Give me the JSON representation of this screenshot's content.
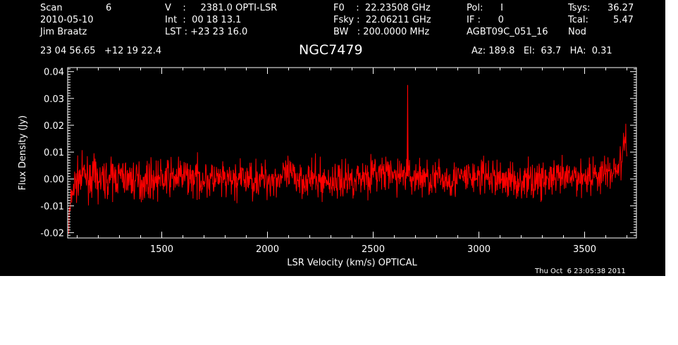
{
  "header": {
    "scan_label": "Scan",
    "scan_value": "6",
    "date": "2010-05-10",
    "observer": "Jim Braatz",
    "v_line": "V    :     2381.0 OPTI-LSR",
    "int_line": "Int  :  00 18 13.1",
    "lst_line": "LST : +23 23 16.0",
    "f0_line": "F0    :  22.23508 GHz",
    "fsky_line": "Fsky :  22.06211 GHz",
    "bw_line": "BW   : 200.0000 MHz",
    "pol_line": "Pol:      I",
    "if_line": "IF :      0",
    "project": "AGBT09C_051_16",
    "tsys_label": "Tsys:",
    "tsys_value": "36.27",
    "tcal_label": "Tcal:",
    "tcal_value": "5.47",
    "mode": "Nod",
    "coords": "23 04 56.65   +12 19 22.4",
    "source": "NGC7479",
    "az_line": "Az: 189.8   El:  63.7   HA:  0.31"
  },
  "footer": {
    "timestamp": "Thu Oct  6 23:05:38 2011"
  },
  "colors": {
    "background": "#000000",
    "axes": "#ffffff",
    "series": "#ff0000"
  },
  "chart_data": {
    "type": "line",
    "title": "NGC7479",
    "xlabel": "LSR Velocity (km/s) OPTICAL",
    "ylabel": "Flux Density (Jy)",
    "xlim": [
      1055,
      3745
    ],
    "ylim": [
      -0.022,
      0.0415
    ],
    "xticks": [
      1500,
      2000,
      2500,
      3000,
      3500
    ],
    "xtick_labels": [
      "1500",
      "2000",
      "2500",
      "3000",
      "3500"
    ],
    "yticks": [
      -0.02,
      -0.01,
      0.0,
      0.01,
      0.02,
      0.03,
      0.04
    ],
    "ytick_labels": [
      "-0.02",
      "-0.01",
      "0.00",
      "0.01",
      "0.02",
      "0.03",
      "0.04"
    ],
    "grid": false,
    "series": [
      {
        "x": [
          1055,
          1060,
          1065,
          1070,
          1075,
          1080,
          1085,
          1090,
          1100,
          1110,
          1120,
          1130,
          1140,
          1160,
          1180,
          1200,
          1250,
          1300,
          1350,
          1400,
          1450,
          1500,
          1600,
          1700,
          1800,
          1900,
          2000,
          2100,
          2200,
          2300,
          2400,
          2450,
          2500,
          2550,
          2600,
          2650,
          2660,
          2663,
          2666,
          2670,
          2700,
          2800,
          2900,
          3000,
          3100,
          3200,
          3300,
          3400,
          3500,
          3600,
          3640,
          3660,
          3680,
          3690,
          3700
        ],
        "y": [
          0.001,
          -0.017,
          -0.013,
          -0.009,
          -0.006,
          -0.004,
          -0.003,
          -0.002,
          -0.001,
          0.001,
          0.0,
          0.002,
          0.001,
          0.0,
          0.001,
          -0.001,
          0.0,
          0.001,
          0.0,
          -0.001,
          0.0,
          0.0,
          0.001,
          0.0,
          -0.001,
          0.0,
          0.0,
          0.001,
          0.0,
          -0.001,
          0.0,
          0.001,
          0.002,
          0.002,
          0.001,
          0.002,
          0.001,
          0.035,
          0.001,
          0.0,
          0.001,
          0.0,
          0.0,
          0.001,
          0.0,
          -0.001,
          0.0,
          0.0,
          0.001,
          0.002,
          0.003,
          0.005,
          0.007,
          0.016,
          0.011
        ]
      }
    ],
    "noise_rms": 0.0035
  }
}
